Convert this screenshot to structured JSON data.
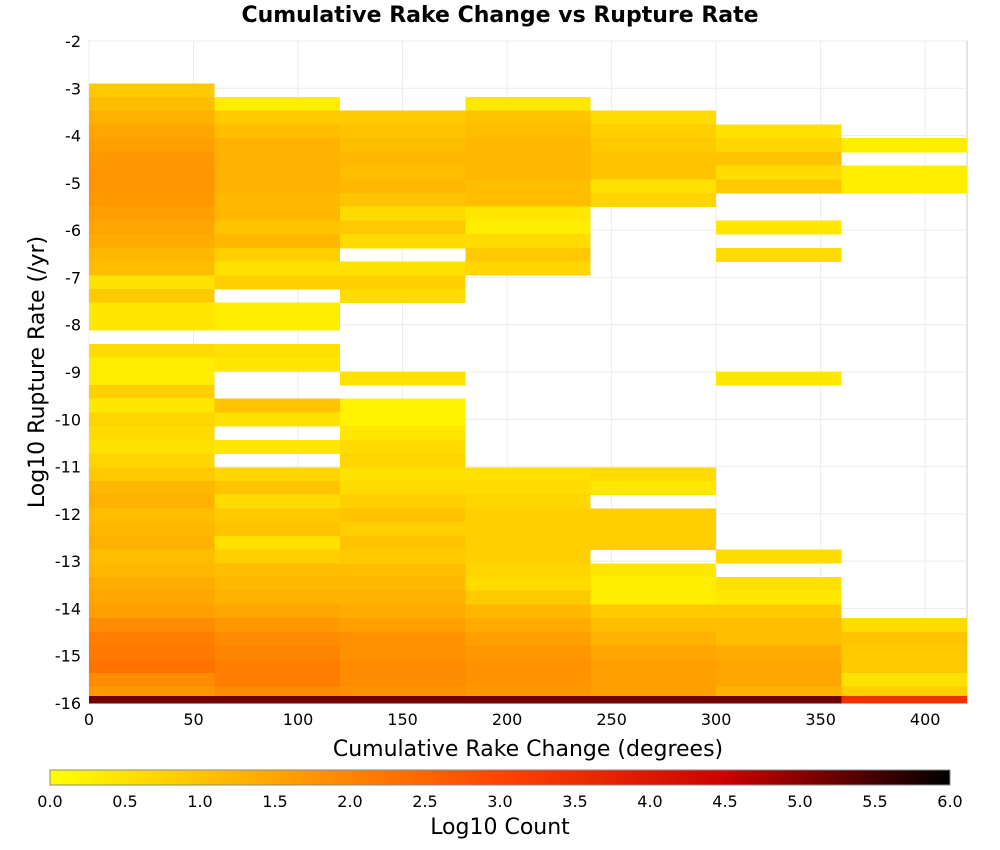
{
  "chart_data": {
    "type": "heatmap",
    "title": "Cumulative Rake Change vs Rupture Rate",
    "xlabel": "Cumulative Rake Change (degrees)",
    "ylabel": "Log10 Rupture Rate (/yr)",
    "xlim": [
      0,
      420
    ],
    "ylim": [
      -16,
      -2
    ],
    "x_ticks": [
      "0",
      "50",
      "100",
      "150",
      "200",
      "250",
      "300",
      "350",
      "400"
    ],
    "y_ticks": [
      "-2",
      "-3",
      "-4",
      "-5",
      "-6",
      "-7",
      "-8",
      "-9",
      "-10",
      "-11",
      "-12",
      "-13",
      "-14",
      "-15",
      "-16"
    ],
    "grid": true,
    "x_bin_width": 60,
    "y_bin_height": 0.29,
    "x_bins": [
      0,
      60,
      120,
      180,
      240,
      300,
      360
    ],
    "colorscale": {
      "label": "Log10 Count",
      "min": 0.0,
      "max": 6.0,
      "ticks": [
        "0.0",
        "0.5",
        "1.0",
        "1.5",
        "2.0",
        "2.5",
        "3.0",
        "3.5",
        "4.0",
        "4.5",
        "5.0",
        "5.5",
        "6.0"
      ],
      "colors": [
        "#ffff00",
        "#ffa500",
        "#ff4400",
        "#cc0000",
        "#000000"
      ]
    },
    "columns": [
      [
        [
          -3.04,
          0.9
        ],
        [
          -3.33,
          1.1
        ],
        [
          -3.62,
          1.3
        ],
        [
          -3.91,
          1.5
        ],
        [
          -4.2,
          1.6
        ],
        [
          -4.49,
          1.7
        ],
        [
          -4.78,
          1.75
        ],
        [
          -5.07,
          1.75
        ],
        [
          -5.36,
          1.7
        ],
        [
          -5.65,
          1.6
        ],
        [
          -5.94,
          1.5
        ],
        [
          -6.23,
          1.4
        ],
        [
          -6.52,
          1.2
        ],
        [
          -6.81,
          1.1
        ],
        [
          -7.1,
          0.5
        ],
        [
          -7.39,
          0.9
        ],
        [
          -7.68,
          0.4
        ],
        [
          -7.97,
          0.4
        ],
        [
          -8.55,
          0.6
        ],
        [
          -8.84,
          0.3
        ],
        [
          -9.13,
          0.3
        ],
        [
          -9.42,
          0.8
        ],
        [
          -9.71,
          0.4
        ],
        [
          -10.0,
          0.7
        ],
        [
          -10.29,
          0.6
        ],
        [
          -10.58,
          0.5
        ],
        [
          -10.87,
          0.7
        ],
        [
          -11.16,
          0.9
        ],
        [
          -11.45,
          1.2
        ],
        [
          -11.74,
          1.3
        ],
        [
          -12.03,
          1.1
        ],
        [
          -12.32,
          1.2
        ],
        [
          -12.61,
          1.3
        ],
        [
          -12.9,
          1.1
        ],
        [
          -13.19,
          1.2
        ],
        [
          -13.48,
          1.4
        ],
        [
          -13.77,
          1.5
        ],
        [
          -14.06,
          1.6
        ],
        [
          -14.35,
          1.9
        ],
        [
          -14.64,
          2.1
        ],
        [
          -14.93,
          2.2
        ],
        [
          -15.22,
          2.3
        ],
        [
          -15.51,
          1.9
        ],
        [
          -15.8,
          1.7
        ],
        [
          -16.0,
          5.2
        ]
      ],
      [
        [
          -3.33,
          0.3
        ],
        [
          -3.62,
          0.9
        ],
        [
          -3.91,
          1.1
        ],
        [
          -4.2,
          1.3
        ],
        [
          -4.49,
          1.3
        ],
        [
          -4.78,
          1.3
        ],
        [
          -5.07,
          1.3
        ],
        [
          -5.36,
          1.2
        ],
        [
          -5.65,
          1.2
        ],
        [
          -5.94,
          1.0
        ],
        [
          -6.23,
          1.2
        ],
        [
          -6.52,
          0.8
        ],
        [
          -6.81,
          0.5
        ],
        [
          -7.1,
          0.8
        ],
        [
          -7.68,
          0.3
        ],
        [
          -7.97,
          0.3
        ],
        [
          -8.55,
          0.5
        ],
        [
          -8.84,
          0.4
        ],
        [
          -9.71,
          1.0
        ],
        [
          -10.0,
          0.5
        ],
        [
          -10.58,
          0.4
        ],
        [
          -11.16,
          0.7
        ],
        [
          -11.45,
          1.0
        ],
        [
          -11.74,
          0.6
        ],
        [
          -12.03,
          0.9
        ],
        [
          -12.32,
          1.0
        ],
        [
          -12.61,
          0.5
        ],
        [
          -12.9,
          0.8
        ],
        [
          -13.19,
          1.1
        ],
        [
          -13.48,
          1.2
        ],
        [
          -13.77,
          1.3
        ],
        [
          -14.06,
          1.5
        ],
        [
          -14.35,
          1.7
        ],
        [
          -14.64,
          1.9
        ],
        [
          -14.93,
          2.0
        ],
        [
          -15.22,
          2.1
        ],
        [
          -15.51,
          2.1
        ],
        [
          -15.8,
          1.9
        ],
        [
          -16.0,
          5.2
        ]
      ],
      [
        [
          -3.62,
          0.9
        ],
        [
          -3.91,
          1.0
        ],
        [
          -4.2,
          1.1
        ],
        [
          -4.49,
          1.2
        ],
        [
          -4.78,
          1.1
        ],
        [
          -5.07,
          1.2
        ],
        [
          -5.36,
          1.0
        ],
        [
          -5.65,
          0.6
        ],
        [
          -5.94,
          0.9
        ],
        [
          -6.23,
          0.6
        ],
        [
          -6.81,
          0.5
        ],
        [
          -7.1,
          0.8
        ],
        [
          -7.39,
          0.6
        ],
        [
          -9.13,
          0.5
        ],
        [
          -9.71,
          0.2
        ],
        [
          -10.0,
          0.2
        ],
        [
          -10.29,
          0.4
        ],
        [
          -10.58,
          0.6
        ],
        [
          -10.87,
          0.7
        ],
        [
          -11.16,
          0.5
        ],
        [
          -11.45,
          0.6
        ],
        [
          -11.74,
          0.8
        ],
        [
          -12.03,
          1.0
        ],
        [
          -12.32,
          0.8
        ],
        [
          -12.61,
          1.0
        ],
        [
          -12.9,
          0.9
        ],
        [
          -13.19,
          1.1
        ],
        [
          -13.48,
          1.2
        ],
        [
          -13.77,
          1.3
        ],
        [
          -14.06,
          1.4
        ],
        [
          -14.35,
          1.6
        ],
        [
          -14.64,
          1.8
        ],
        [
          -14.93,
          1.8
        ],
        [
          -15.22,
          1.9
        ],
        [
          -15.51,
          1.9
        ],
        [
          -15.8,
          1.8
        ],
        [
          -16.0,
          5.2
        ]
      ],
      [
        [
          -3.33,
          0.4
        ],
        [
          -3.62,
          1.0
        ],
        [
          -3.91,
          1.1
        ],
        [
          -4.2,
          1.2
        ],
        [
          -4.49,
          1.2
        ],
        [
          -4.78,
          1.2
        ],
        [
          -5.07,
          1.1
        ],
        [
          -5.36,
          1.1
        ],
        [
          -5.65,
          0.4
        ],
        [
          -5.94,
          0.3
        ],
        [
          -6.23,
          0.6
        ],
        [
          -6.52,
          0.9
        ],
        [
          -6.81,
          0.7
        ],
        [
          -11.16,
          0.5
        ],
        [
          -11.45,
          0.6
        ],
        [
          -11.74,
          0.7
        ],
        [
          -12.03,
          0.8
        ],
        [
          -12.32,
          0.8
        ],
        [
          -12.61,
          0.8
        ],
        [
          -12.9,
          0.8
        ],
        [
          -13.19,
          0.7
        ],
        [
          -13.48,
          0.6
        ],
        [
          -13.77,
          0.9
        ],
        [
          -14.06,
          1.2
        ],
        [
          -14.35,
          1.4
        ],
        [
          -14.64,
          1.6
        ],
        [
          -14.93,
          1.7
        ],
        [
          -15.22,
          1.8
        ],
        [
          -15.51,
          1.8
        ],
        [
          -15.8,
          1.7
        ],
        [
          -16.0,
          5.2
        ]
      ],
      [
        [
          -3.62,
          0.6
        ],
        [
          -3.91,
          0.8
        ],
        [
          -4.2,
          0.9
        ],
        [
          -4.49,
          1.0
        ],
        [
          -4.78,
          1.0
        ],
        [
          -5.07,
          0.5
        ],
        [
          -5.36,
          0.7
        ],
        [
          -11.16,
          0.6
        ],
        [
          -11.45,
          0.4
        ],
        [
          -12.03,
          0.8
        ],
        [
          -12.32,
          0.8
        ],
        [
          -12.61,
          0.8
        ],
        [
          -13.19,
          0.4
        ],
        [
          -13.48,
          0.3
        ],
        [
          -13.77,
          0.3
        ],
        [
          -14.06,
          0.9
        ],
        [
          -14.35,
          1.1
        ],
        [
          -14.64,
          1.3
        ],
        [
          -14.93,
          1.5
        ],
        [
          -15.22,
          1.6
        ],
        [
          -15.51,
          1.6
        ],
        [
          -15.8,
          1.6
        ],
        [
          -16.0,
          5.2
        ]
      ],
      [
        [
          -3.91,
          0.5
        ],
        [
          -4.2,
          0.7
        ],
        [
          -4.49,
          1.0
        ],
        [
          -4.78,
          0.6
        ],
        [
          -5.07,
          0.9
        ],
        [
          -5.94,
          0.4
        ],
        [
          -6.52,
          0.6
        ],
        [
          -9.13,
          0.4
        ],
        [
          -12.9,
          0.6
        ],
        [
          -13.48,
          0.5
        ],
        [
          -13.77,
          0.4
        ],
        [
          -14.06,
          0.9
        ],
        [
          -14.35,
          1.1
        ],
        [
          -14.64,
          1.1
        ],
        [
          -14.93,
          1.4
        ],
        [
          -15.22,
          1.5
        ],
        [
          -15.51,
          1.5
        ],
        [
          -15.8,
          1.3
        ],
        [
          -16.0,
          5.2
        ]
      ],
      [
        [
          -4.2,
          0.3
        ],
        [
          -4.78,
          0.3
        ],
        [
          -5.07,
          0.3
        ],
        [
          -14.35,
          0.6
        ],
        [
          -14.64,
          1.0
        ],
        [
          -14.93,
          0.9
        ],
        [
          -15.22,
          0.9
        ],
        [
          -15.51,
          0.5
        ],
        [
          -15.8,
          0.8
        ],
        [
          -16.0,
          3.4
        ]
      ]
    ]
  }
}
